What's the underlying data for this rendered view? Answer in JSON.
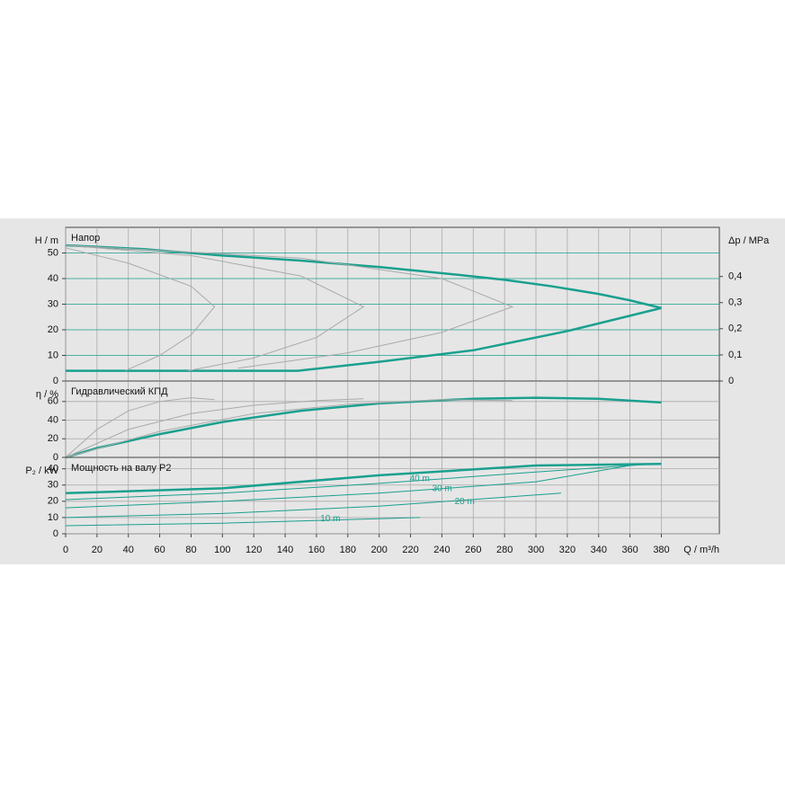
{
  "chart_data": [
    {
      "type": "line",
      "title": "Напор",
      "y_label": "H / m",
      "y2_label": "Δp / MPa",
      "xlim": [
        0,
        417
      ],
      "ylim": [
        0,
        60
      ],
      "yticks": [
        0,
        10,
        20,
        30,
        40,
        50
      ],
      "y2lim": [
        0,
        0.588
      ],
      "y2ticks": [
        0,
        {
          "value": 0.1,
          "label": "0,1"
        },
        {
          "value": 0.2,
          "label": "0,2"
        },
        {
          "value": 0.3,
          "label": "0,3"
        },
        {
          "value": 0.4,
          "label": "0,4"
        }
      ],
      "grid": true,
      "grid_color": "#1aa08f",
      "series": [
        {
          "color": "#1aa08f",
          "line_width": 2.5,
          "x": [
            0,
            50,
            100,
            150,
            200,
            250,
            280,
            310,
            340,
            360,
            380
          ],
          "values": [
            53,
            51.5,
            49,
            47,
            44.5,
            41.5,
            39.5,
            37,
            34,
            31.5,
            28.5
          ]
        },
        {
          "color": "#1aa08f",
          "line_width": 2.5,
          "x": [
            0,
            148,
            200,
            260,
            320,
            350,
            380
          ],
          "values": [
            4,
            4,
            7.5,
            12,
            19.5,
            24,
            28.5
          ]
        },
        {
          "color": "#aaaaaa",
          "line_width": 1,
          "x": [
            0,
            40,
            80,
            95,
            80,
            60,
            38
          ],
          "values": [
            52,
            46,
            37,
            29,
            18,
            10,
            4
          ]
        },
        {
          "color": "#aaaaaa",
          "line_width": 1,
          "x": [
            0,
            80,
            150,
            190,
            160,
            120,
            78
          ],
          "values": [
            53,
            49,
            41,
            29,
            17,
            9,
            4
          ]
        },
        {
          "color": "#aaaaaa",
          "line_width": 1,
          "x": [
            0,
            150,
            240,
            285,
            240,
            180,
            110
          ],
          "values": [
            53,
            48,
            40,
            29,
            19,
            11,
            5
          ]
        }
      ]
    },
    {
      "type": "line",
      "title": "Гидравлический КПД",
      "y_label": "η / %",
      "xlim": [
        0,
        417
      ],
      "ylim": [
        0,
        82
      ],
      "yticks": [
        0,
        20,
        40,
        60
      ],
      "grid": true,
      "grid_color": "#aaaaaa",
      "series": [
        {
          "color": "#1aa08f",
          "line_width": 2.5,
          "x": [
            0,
            20,
            60,
            100,
            150,
            200,
            260,
            300,
            340,
            380
          ],
          "values": [
            0,
            10,
            25,
            38,
            50,
            58,
            63,
            64,
            63,
            59
          ]
        },
        {
          "color": "#aaaaaa",
          "line_width": 1,
          "x": [
            0,
            20,
            40,
            60,
            80,
            95
          ],
          "values": [
            0,
            30,
            50,
            60,
            64,
            62
          ]
        },
        {
          "color": "#aaaaaa",
          "line_width": 1,
          "x": [
            0,
            40,
            80,
            120,
            160,
            190
          ],
          "values": [
            0,
            30,
            47,
            56,
            61,
            63
          ]
        },
        {
          "color": "#aaaaaa",
          "line_width": 1,
          "x": [
            0,
            60,
            120,
            180,
            240,
            285
          ],
          "values": [
            0,
            28,
            47,
            57,
            62,
            61
          ]
        }
      ]
    },
    {
      "type": "line",
      "title": "Мощность на валу P2",
      "y_label": "P₂ / kW",
      "x_label": "Q / m³/h",
      "xlim": [
        0,
        417
      ],
      "ylim": [
        0,
        47
      ],
      "yticks": [
        0,
        10,
        20,
        30,
        40
      ],
      "xticks": [
        0,
        20,
        40,
        60,
        80,
        100,
        120,
        140,
        160,
        180,
        200,
        220,
        240,
        260,
        280,
        300,
        320,
        340,
        360,
        380
      ],
      "grid": true,
      "grid_color": "#aaaaaa",
      "series": [
        {
          "color": "#1aa08f",
          "line_width": 2.5,
          "x": [
            0,
            100,
            200,
            300,
            380
          ],
          "values": [
            25,
            28,
            36,
            42,
            43
          ]
        },
        {
          "name": "40 m",
          "color": "#1aa08f",
          "line_width": 1,
          "x": [
            0,
            100,
            200,
            300,
            375
          ],
          "values": [
            21,
            25,
            31,
            38,
            43
          ]
        },
        {
          "name": "30 m",
          "color": "#1aa08f",
          "line_width": 1,
          "x": [
            0,
            100,
            200,
            300,
            360
          ],
          "values": [
            16,
            20,
            25,
            32,
            42
          ]
        },
        {
          "name": "20 m",
          "color": "#1aa08f",
          "line_width": 1,
          "x": [
            0,
            100,
            200,
            316
          ],
          "values": [
            10,
            12.5,
            17,
            25
          ]
        },
        {
          "name": "10 m",
          "color": "#1aa08f",
          "line_width": 1,
          "x": [
            0,
            100,
            226
          ],
          "values": [
            5,
            6.5,
            10
          ]
        }
      ]
    }
  ]
}
